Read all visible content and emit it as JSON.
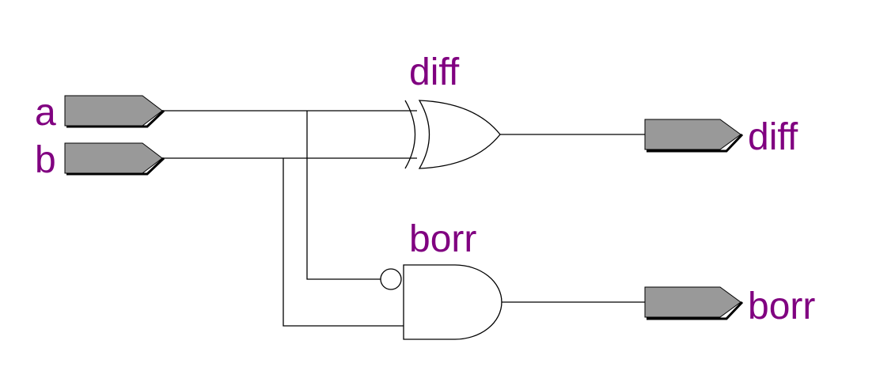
{
  "inputs": {
    "a": "a",
    "b": "b"
  },
  "outputs": {
    "diff": "diff",
    "borr": "borr"
  },
  "gates": {
    "xor_label": "diff",
    "and_label": "borr"
  },
  "colors": {
    "label": "#800080",
    "port_fill": "#999999",
    "wire": "#000000"
  }
}
